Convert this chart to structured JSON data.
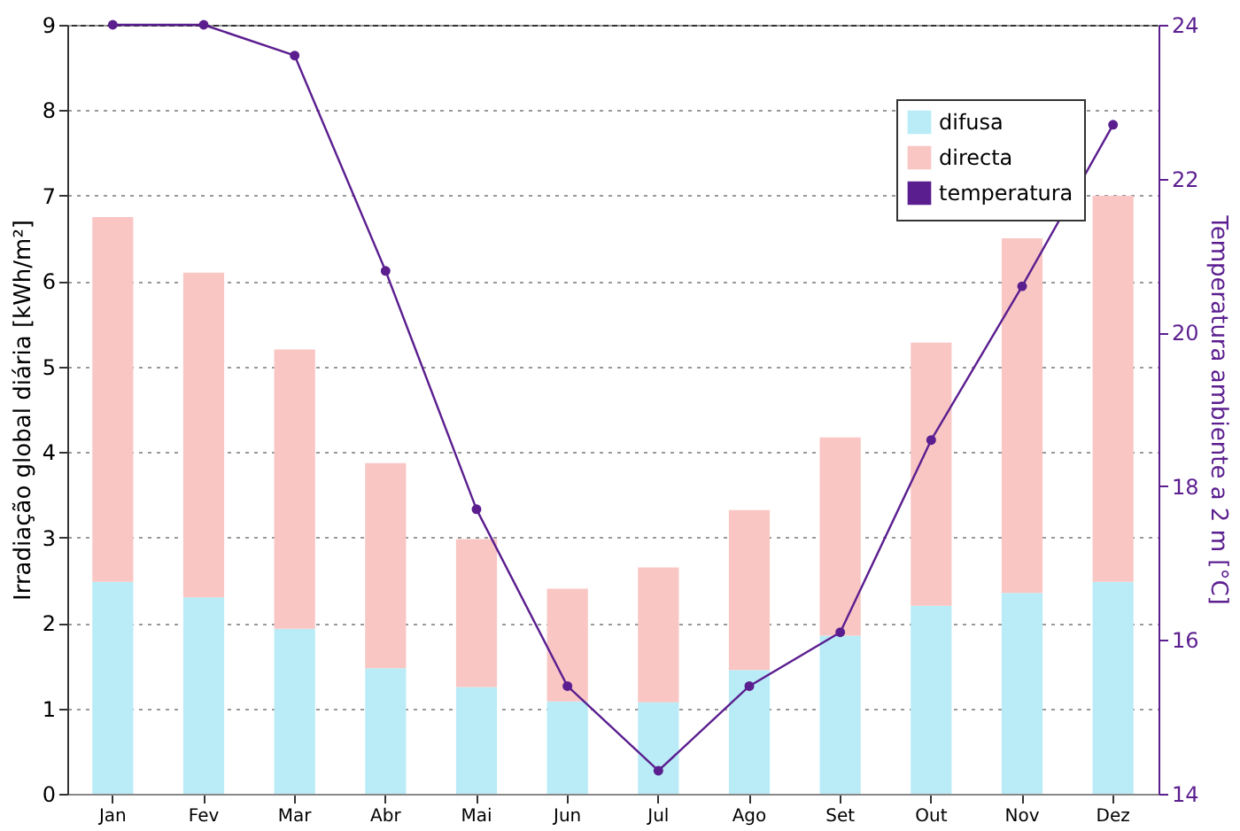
{
  "chart_data": {
    "type": "bar",
    "stacked": true,
    "xlabel": null,
    "ylabel": "Irradiação global diária [kWh/m²]",
    "y2label": "Temperatura ambiente a 2 m [°C]",
    "categories": [
      "Jan",
      "Fev",
      "Mar",
      "Abr",
      "Mai",
      "Jun",
      "Jul",
      "Ago",
      "Set",
      "Out",
      "Nov",
      "Dez"
    ],
    "series": [
      {
        "name": "difusa",
        "type": "bar",
        "color": "#b9ecf7",
        "values": [
          2.48,
          2.3,
          1.93,
          1.47,
          1.25,
          1.08,
          1.07,
          1.45,
          1.85,
          2.2,
          2.35,
          2.48
        ]
      },
      {
        "name": "directa",
        "type": "bar",
        "color": "#f9c6c4",
        "values": [
          4.27,
          3.8,
          3.27,
          2.4,
          1.73,
          1.32,
          1.58,
          1.87,
          2.32,
          3.08,
          4.15,
          4.52
        ]
      },
      {
        "name": "temperatura",
        "type": "line",
        "axis": "y2",
        "color": "#5b1e8f",
        "values": [
          24,
          24,
          23.6,
          20.8,
          17.7,
          15.4,
          14.3,
          15.4,
          16.1,
          18.6,
          20.6,
          22.7
        ]
      }
    ],
    "ylim": [
      0,
      9
    ],
    "yticks": [
      0,
      1,
      2,
      3,
      4,
      5,
      6,
      7,
      8,
      9
    ],
    "y2lim": [
      14,
      24
    ],
    "y2ticks": [
      14,
      16,
      18,
      20,
      22,
      24
    ],
    "grid": "y",
    "legend": "top right",
    "marker": "circle",
    "line_style": "solid"
  }
}
